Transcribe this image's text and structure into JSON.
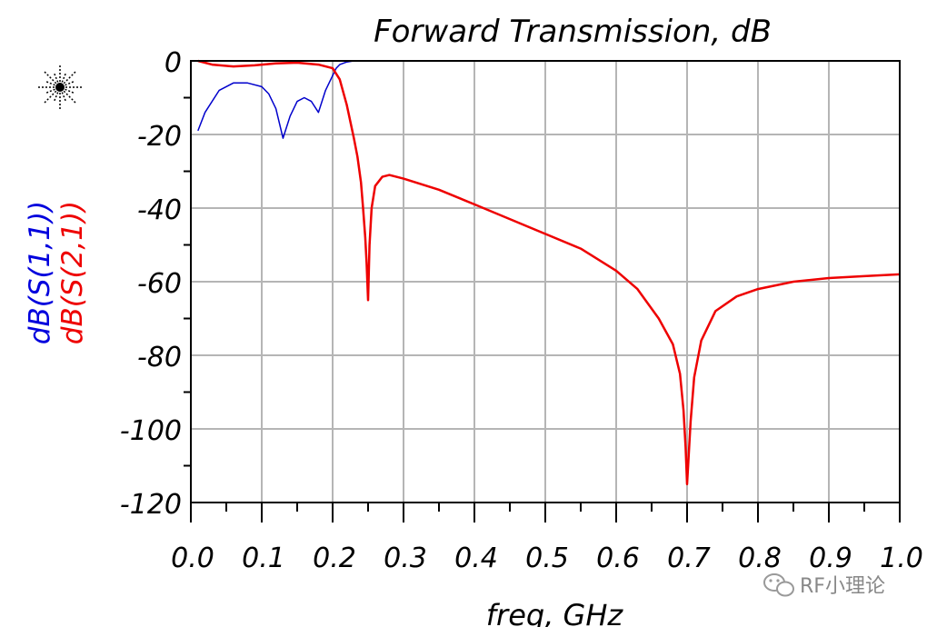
{
  "chart_data": {
    "type": "line",
    "title": "Forward Transmission, dB",
    "xlabel": "freq, GHz",
    "ylabels": [
      "dB(S(1,1))",
      "dB(S(2,1))"
    ],
    "xlim": [
      0.0,
      1.0
    ],
    "ylim": [
      -120,
      0
    ],
    "xticks": [
      "0.0",
      "0.1",
      "0.2",
      "0.3",
      "0.4",
      "0.5",
      "0.6",
      "0.7",
      "0.8",
      "0.9",
      "1.0"
    ],
    "yticks": [
      "0",
      "-20",
      "-40",
      "-60",
      "-80",
      "-100",
      "-120"
    ],
    "grid": true,
    "series": [
      {
        "name": "dB(S(1,1))",
        "color": "#0000cc",
        "x": [
          0.01,
          0.02,
          0.04,
          0.06,
          0.08,
          0.1,
          0.11,
          0.12,
          0.13,
          0.14,
          0.15,
          0.16,
          0.17,
          0.18,
          0.19,
          0.195,
          0.2,
          0.205,
          0.21,
          0.22,
          0.23,
          0.3,
          0.4,
          0.6,
          0.8,
          1.0
        ],
        "y": [
          -19,
          -14,
          -8,
          -6,
          -6,
          -7,
          -9,
          -13,
          -21,
          -15,
          -11,
          -10,
          -11,
          -14,
          -8,
          -6,
          -4,
          -2,
          -1,
          -0.3,
          0,
          0,
          0,
          0,
          0,
          0
        ]
      },
      {
        "name": "dB(S(2,1))",
        "color": "#ee0000",
        "x": [
          0.01,
          0.03,
          0.06,
          0.09,
          0.12,
          0.15,
          0.18,
          0.2,
          0.21,
          0.22,
          0.23,
          0.235,
          0.24,
          0.243,
          0.246,
          0.248,
          0.25,
          0.252,
          0.255,
          0.26,
          0.27,
          0.28,
          0.29,
          0.3,
          0.35,
          0.4,
          0.45,
          0.5,
          0.55,
          0.6,
          0.63,
          0.66,
          0.68,
          0.69,
          0.695,
          0.698,
          0.7,
          0.705,
          0.71,
          0.72,
          0.74,
          0.77,
          0.8,
          0.85,
          0.9,
          0.95,
          1.0
        ],
        "y": [
          0,
          -1,
          -1.5,
          -1.2,
          -0.7,
          -0.5,
          -1,
          -2,
          -5,
          -12,
          -21,
          -26,
          -33,
          -40,
          -48,
          -55,
          -65,
          -50,
          -40,
          -34,
          -31.5,
          -31,
          -31.5,
          -32,
          -35,
          -39,
          -43,
          -47,
          -51,
          -57,
          -62,
          -70,
          -77,
          -85,
          -95,
          -105,
          -115,
          -98,
          -86,
          -76,
          -68,
          -64,
          -62,
          -60,
          -59,
          -58.5,
          -58
        ]
      }
    ]
  },
  "watermark": {
    "icon": "wechat-icon",
    "text": "RF小理论"
  },
  "logo": {
    "icon": "starburst-logo-icon"
  }
}
